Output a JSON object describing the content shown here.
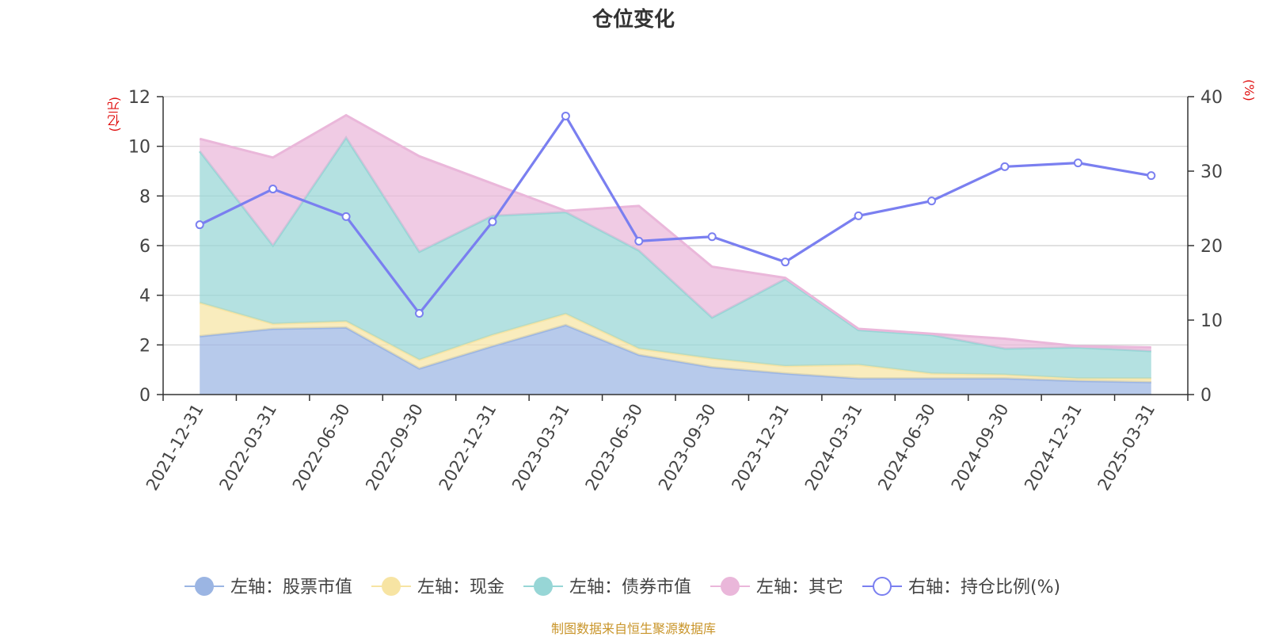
{
  "chart_data": {
    "type": "area",
    "title": "仓位变化",
    "left_axis_unit": "(亿元)",
    "right_axis_unit": "(%)",
    "x": [
      "2021-12-31",
      "2022-03-31",
      "2022-06-30",
      "2022-09-30",
      "2022-12-31",
      "2023-03-31",
      "2023-06-30",
      "2023-09-30",
      "2023-12-31",
      "2024-03-31",
      "2024-06-30",
      "2024-09-30",
      "2024-12-31",
      "2025-03-31"
    ],
    "y_left_range": [
      0,
      12
    ],
    "y_left_ticks": [
      0,
      2,
      4,
      6,
      8,
      10,
      12
    ],
    "y_right_range": [
      0,
      40
    ],
    "y_right_ticks": [
      0,
      10,
      20,
      30,
      40
    ],
    "grid": true,
    "legend_position": "bottom",
    "series": [
      {
        "name": "左轴：股票市值",
        "axis": "left",
        "stack": true,
        "type": "area",
        "color": "#9bb5e3",
        "values": [
          2.35,
          2.65,
          2.7,
          1.05,
          1.95,
          2.8,
          1.6,
          1.1,
          0.85,
          0.65,
          0.65,
          0.65,
          0.55,
          0.5
        ]
      },
      {
        "name": "左轴：现金",
        "axis": "left",
        "stack": true,
        "type": "area",
        "color": "#f7e4a3",
        "values": [
          1.35,
          0.2,
          0.25,
          0.35,
          0.45,
          0.45,
          0.25,
          0.35,
          0.3,
          0.55,
          0.2,
          0.15,
          0.1,
          0.15
        ]
      },
      {
        "name": "左轴：债券市值",
        "axis": "left",
        "stack": true,
        "type": "area",
        "color": "#97d6d6",
        "values": [
          6.1,
          3.15,
          7.4,
          4.35,
          4.8,
          4.1,
          3.95,
          1.65,
          3.5,
          1.4,
          1.55,
          1.05,
          1.25,
          1.1
        ]
      },
      {
        "name": "左轴：其它",
        "axis": "left",
        "stack": true,
        "type": "area",
        "color": "#eab7da",
        "values": [
          0.5,
          3.55,
          0.9,
          3.85,
          1.3,
          0.05,
          1.8,
          2.05,
          0.05,
          0.05,
          0.05,
          0.4,
          0.05,
          0.15
        ]
      },
      {
        "name": "右轴：持仓比例(%)",
        "axis": "right",
        "type": "line",
        "color": "#7a7ff0",
        "values": [
          22.8,
          27.6,
          23.9,
          10.9,
          23.2,
          37.4,
          20.6,
          21.2,
          17.8,
          24.0,
          26.0,
          30.6,
          31.1,
          29.4
        ]
      }
    ],
    "source_note": "制图数据来自恒生聚源数据库"
  }
}
